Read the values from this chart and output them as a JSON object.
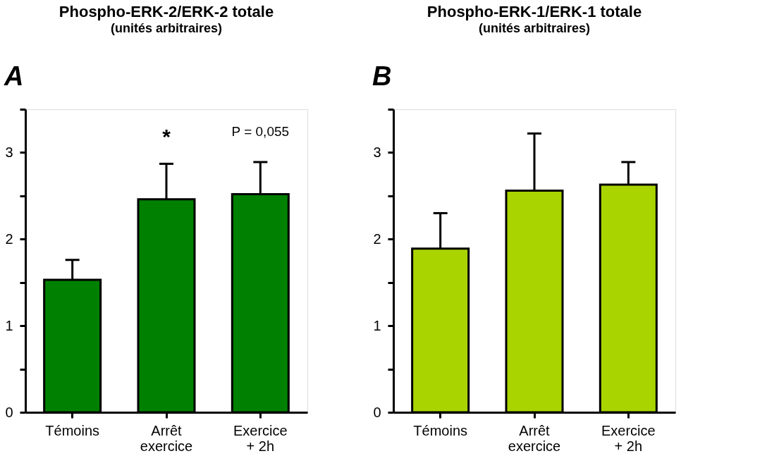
{
  "chart_data": [
    {
      "type": "bar",
      "title": "Phospho-ERK-2/ERK-2 totale",
      "subtitle": "(unités arbitraires)",
      "categories": [
        "Témoins",
        "Arrêt\nexercice",
        "Exercice\n+ 2h"
      ],
      "values": [
        1.53,
        2.46,
        2.52
      ],
      "color": "#008000",
      "errors": [
        [
          1.53,
          1.76
        ],
        [
          2.46,
          2.87
        ],
        [
          2.52,
          2.89
        ]
      ],
      "ylim": [
        0,
        3.5
      ],
      "yticks": [
        0,
        {
          "value": 0.5,
          "label": null
        },
        1,
        {
          "value": 1.5,
          "label": null
        },
        2,
        {
          "value": 2.5,
          "label": null
        },
        3,
        {
          "value": 3.5,
          "label": null
        }
      ],
      "grid": false,
      "annotations": [
        "A",
        "*",
        "P = 0,055"
      ]
    },
    {
      "type": "bar",
      "title": "Phospho-ERK-1/ERK-1 totale",
      "subtitle": "(unités arbitraires)",
      "categories": [
        "Témoins",
        "Arrêt\nexercice",
        "Exercice\n+ 2h"
      ],
      "values": [
        1.89,
        2.56,
        2.63
      ],
      "color": "#aad400",
      "errors": [
        [
          1.89,
          2.3
        ],
        [
          2.56,
          3.22
        ],
        [
          2.63,
          2.89
        ]
      ],
      "ylim": [
        0,
        3.5
      ],
      "yticks": [
        0,
        {
          "value": 0.5,
          "label": null
        },
        1,
        {
          "value": 1.5,
          "label": null
        },
        2,
        {
          "value": 2.5,
          "label": null
        },
        3,
        {
          "value": 3.5,
          "label": null
        }
      ],
      "grid": false,
      "annotations": [
        "B"
      ]
    }
  ]
}
